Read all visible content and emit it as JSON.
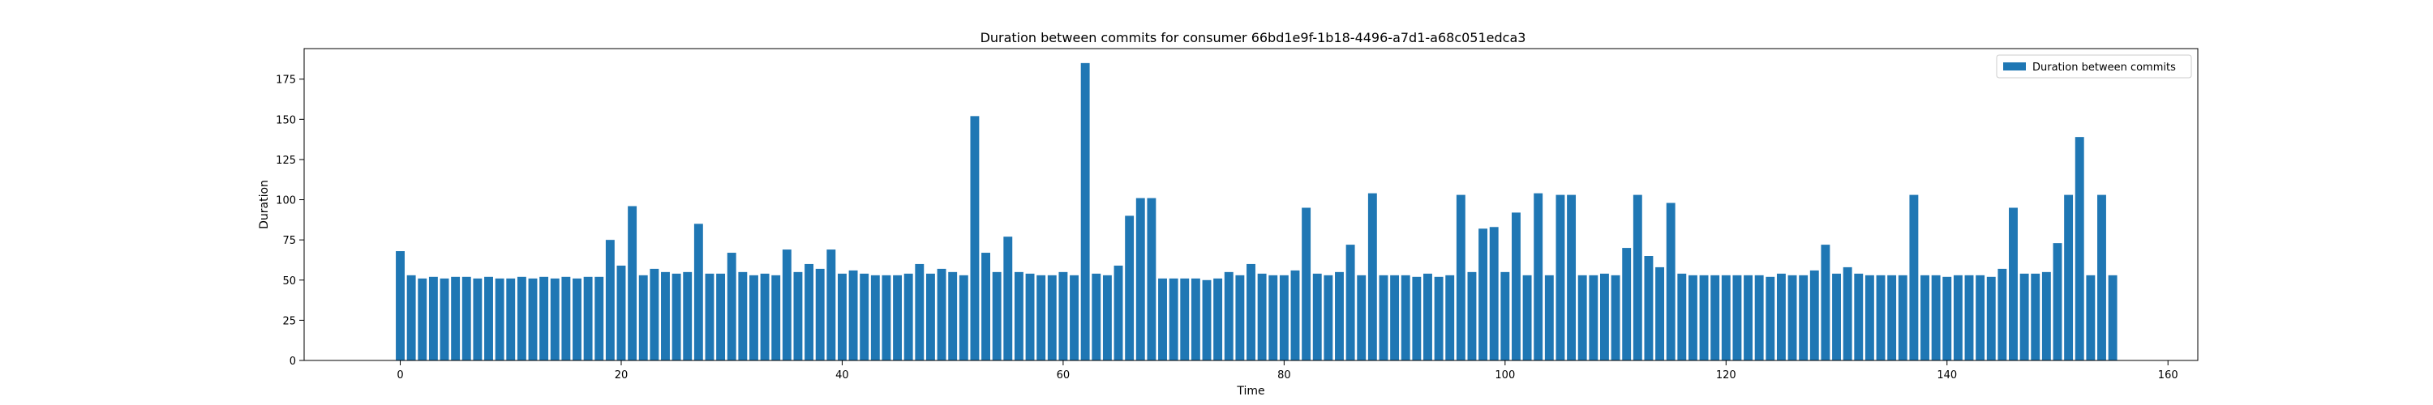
{
  "chart_data": {
    "type": "bar",
    "title": "Duration between commits for consumer 66bd1e9f-1b18-4496-a7d1-a68c051edca3",
    "xlabel": "Time",
    "ylabel": "Duration",
    "xlim": [
      -8.7,
      162.7
    ],
    "ylim": [
      0,
      194
    ],
    "xticks": [
      0,
      20,
      40,
      60,
      80,
      100,
      120,
      140,
      160
    ],
    "yticks": [
      0,
      25,
      50,
      75,
      100,
      125,
      150,
      175
    ],
    "grid": false,
    "legend_position": "upper right",
    "color": "#1f77b4",
    "series": [
      {
        "name": "Duration between commits",
        "x": [
          0,
          1,
          2,
          3,
          4,
          5,
          6,
          7,
          8,
          9,
          10,
          11,
          12,
          13,
          14,
          15,
          16,
          17,
          18,
          19,
          20,
          21,
          22,
          23,
          24,
          25,
          26,
          27,
          28,
          29,
          30,
          31,
          32,
          33,
          34,
          35,
          36,
          37,
          38,
          39,
          40,
          41,
          42,
          43,
          44,
          45,
          46,
          47,
          48,
          49,
          50,
          51,
          52,
          53,
          54,
          55,
          56,
          57,
          58,
          59,
          60,
          61,
          62,
          63,
          64,
          65,
          66,
          67,
          68,
          69,
          70,
          71,
          72,
          73,
          74,
          75,
          76,
          77,
          78,
          79,
          80,
          81,
          82,
          83,
          84,
          85,
          86,
          87,
          88,
          89,
          90,
          91,
          92,
          93,
          94,
          95,
          96,
          97,
          98,
          99,
          100,
          101,
          102,
          103,
          104,
          105,
          106,
          107,
          108,
          109,
          110,
          111,
          112,
          113,
          114,
          115,
          116,
          117,
          118,
          119,
          120,
          121,
          122,
          123,
          124,
          125,
          126,
          127,
          128,
          129,
          130,
          131,
          132,
          133,
          134,
          135,
          136,
          137,
          138,
          139,
          140,
          141,
          142,
          143,
          144,
          145,
          146,
          147,
          148,
          149,
          150,
          151,
          152,
          153,
          154,
          155
        ],
        "values": [
          68,
          53,
          51,
          52,
          51,
          52,
          52,
          51,
          52,
          51,
          51,
          52,
          51,
          52,
          51,
          52,
          51,
          52,
          52,
          75,
          59,
          96,
          53,
          57,
          55,
          54,
          55,
          85,
          54,
          54,
          67,
          55,
          53,
          54,
          53,
          69,
          55,
          60,
          57,
          69,
          54,
          56,
          54,
          53,
          53,
          53,
          54,
          60,
          54,
          57,
          55,
          53,
          152,
          67,
          55,
          77,
          55,
          54,
          53,
          53,
          55,
          53,
          185,
          54,
          53,
          59,
          90,
          101,
          101,
          51,
          51,
          51,
          51,
          50,
          51,
          55,
          53,
          60,
          54,
          53,
          53,
          56,
          95,
          54,
          53,
          55,
          72,
          53,
          104,
          53,
          53,
          53,
          52,
          54,
          52,
          53,
          103,
          55,
          82,
          83,
          55,
          92,
          53,
          104,
          53,
          103,
          103,
          53,
          53,
          54,
          53,
          70,
          103,
          65,
          58,
          98,
          54,
          53,
          53,
          53,
          53,
          53,
          53,
          53,
          52,
          54,
          53,
          53,
          56,
          72,
          54,
          58,
          54,
          53,
          53,
          53,
          53,
          103,
          53,
          53,
          52,
          53,
          53,
          53,
          52,
          57,
          95,
          54,
          54,
          55,
          73,
          103,
          139,
          53,
          103,
          53
        ]
      }
    ]
  }
}
